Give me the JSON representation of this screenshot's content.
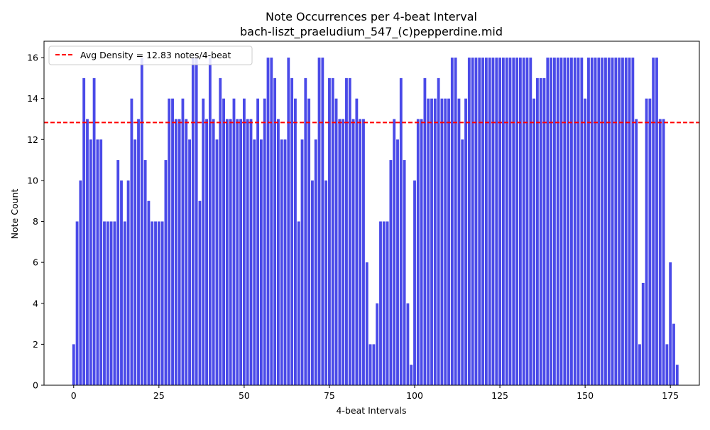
{
  "chart_data": {
    "type": "bar",
    "title": "Note Occurrences per 4-beat Interval",
    "subtitle": "bach-liszt_praeludium_547_(c)pepperdine.mid",
    "xlabel": "4-beat Intervals",
    "ylabel": "Note Count",
    "xlim": [
      -8.7,
      183.5
    ],
    "ylim": [
      0,
      16.8
    ],
    "xticks": [
      0,
      25,
      50,
      75,
      100,
      125,
      150,
      175
    ],
    "yticks": [
      0,
      2,
      4,
      6,
      8,
      10,
      12,
      14,
      16
    ],
    "grid": false,
    "legend_position": "top-left",
    "series": [
      {
        "name": "",
        "color": "#4a4ae8",
        "x_start": 0,
        "values": [
          2,
          8,
          10,
          15,
          13,
          12,
          15,
          12,
          12,
          8,
          8,
          8,
          8,
          11,
          10,
          8,
          10,
          14,
          12,
          13,
          16,
          11,
          9,
          8,
          8,
          8,
          8,
          11,
          14,
          14,
          13,
          13,
          14,
          13,
          12,
          16,
          16,
          9,
          14,
          13,
          16,
          13,
          12,
          15,
          14,
          13,
          13,
          14,
          13,
          13,
          14,
          13,
          13,
          12,
          14,
          12,
          14,
          16,
          16,
          15,
          13,
          12,
          12,
          16,
          15,
          14,
          8,
          12,
          15,
          14,
          10,
          12,
          16,
          16,
          10,
          15,
          15,
          14,
          13,
          13,
          15,
          15,
          13,
          14,
          13,
          13,
          6,
          2,
          2,
          4,
          8,
          8,
          8,
          11,
          13,
          12,
          15,
          11,
          4,
          1,
          10,
          13,
          13,
          15,
          14,
          14,
          14,
          15,
          14,
          14,
          14,
          16,
          16,
          14,
          12,
          14,
          16,
          16,
          16,
          16,
          16,
          16,
          16,
          16,
          16,
          16,
          16,
          16,
          16,
          16,
          16,
          16,
          16,
          16,
          16,
          14,
          15,
          15,
          15,
          16,
          16,
          16,
          16,
          16,
          16,
          16,
          16,
          16,
          16,
          16,
          14,
          16,
          16,
          16,
          16,
          16,
          16,
          16,
          16,
          16,
          16,
          16,
          16,
          16,
          16,
          13,
          2,
          5,
          14,
          14,
          16,
          16,
          13,
          13,
          2,
          6,
          3,
          1
        ]
      }
    ],
    "reference_line": {
      "value": 12.83,
      "label": "Avg Density = 12.83 notes/4-beat",
      "color": "#ff0000",
      "style": "dashed"
    }
  }
}
